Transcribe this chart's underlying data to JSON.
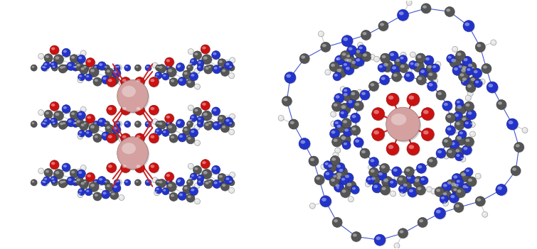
{
  "background_color": "#ffffff",
  "figsize": [
    7.55,
    3.51
  ],
  "dpi": 100,
  "image_data": ""
}
